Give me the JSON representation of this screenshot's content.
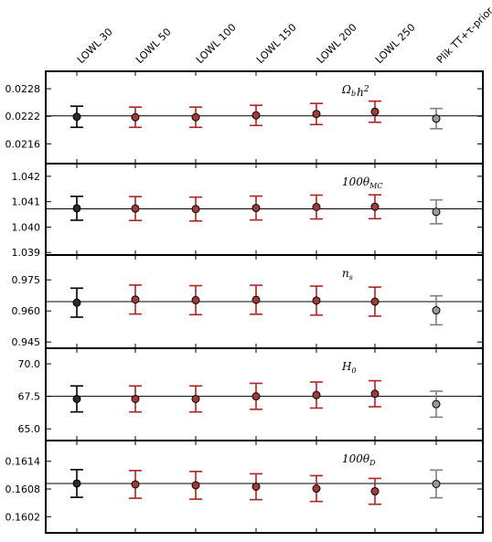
{
  "chart_data": {
    "type": "scatter",
    "subtype": "errorbar-panels",
    "categories": [
      "LOWL 30",
      "LOWL 50",
      "LOWL 100",
      "LOWL 150",
      "LOWL 200",
      "LOWL 250",
      "Plik TT+τ-prior"
    ],
    "category_colors": [
      "#000000",
      "#b22222",
      "#b22222",
      "#b22222",
      "#b22222",
      "#b22222",
      "#808080"
    ],
    "marker_colors": [
      "#2b2b2b",
      "#a33a3a",
      "#a33a3a",
      "#a33a3a",
      "#a33a3a",
      "#a33a3a",
      "#9a9a9a"
    ],
    "grid": false,
    "panels": [
      {
        "label": {
          "main": "Ω",
          "sub": "b",
          "rest": "h",
          "sup": "2"
        },
        "yticks": [
          "0.0228",
          "0.0222",
          "0.0216"
        ],
        "ytick_values": [
          0.0228,
          0.0222,
          0.0216
        ],
        "ylim": [
          0.02117,
          0.02318
        ],
        "reference": 0.02221,
        "values": [
          0.02219,
          0.02218,
          0.02218,
          0.02222,
          0.02225,
          0.0223,
          0.02215
        ],
        "errors": [
          0.00023,
          0.00022,
          0.00022,
          0.00022,
          0.00023,
          0.00023,
          0.00022
        ]
      },
      {
        "label": {
          "main": "100θ",
          "sub": "MC",
          "rest": "",
          "sup": ""
        },
        "yticks": [
          "1.042",
          "1.041",
          "1.040",
          "1.039"
        ],
        "ytick_values": [
          1.042,
          1.041,
          1.04,
          1.039
        ],
        "ylim": [
          1.0389,
          1.0425
        ],
        "reference": 1.04072,
        "values": [
          1.04074,
          1.04073,
          1.04071,
          1.04075,
          1.04079,
          1.0408,
          1.0406
        ],
        "errors": [
          0.00047,
          0.00047,
          0.00047,
          0.00047,
          0.00047,
          0.00047,
          0.00047
        ]
      },
      {
        "label": {
          "main": "n",
          "sub": "s",
          "rest": "",
          "sup": ""
        },
        "yticks": [
          "0.975",
          "0.960",
          "0.945"
        ],
        "ytick_values": [
          0.975,
          0.96,
          0.945
        ],
        "ylim": [
          0.942,
          0.987
        ],
        "reference": 0.9645,
        "values": [
          0.964,
          0.9655,
          0.9652,
          0.9654,
          0.965,
          0.9645,
          0.9603
        ],
        "errors": [
          0.007,
          0.007,
          0.007,
          0.007,
          0.007,
          0.007,
          0.007
        ]
      },
      {
        "label": {
          "main": "H",
          "sub": "0",
          "rest": "",
          "sup": ""
        },
        "yticks": [
          "70.0",
          "67.5",
          "65.0"
        ],
        "ytick_values": [
          70.0,
          67.5,
          65.0
        ],
        "ylim": [
          64.1,
          71.2
        ],
        "reference": 67.5,
        "values": [
          67.3,
          67.3,
          67.3,
          67.5,
          67.6,
          67.7,
          66.9
        ],
        "errors": [
          1.0,
          1.0,
          1.0,
          1.0,
          1.0,
          1.0,
          1.0
        ]
      },
      {
        "label": {
          "main": "100θ",
          "sub": "D",
          "rest": "",
          "sup": ""
        },
        "yticks": [
          "0.1614",
          "0.1608",
          "0.1602"
        ],
        "ytick_values": [
          0.1614,
          0.1608,
          0.1602
        ],
        "ylim": [
          0.15985,
          0.16185
        ],
        "reference": 0.16092,
        "values": [
          0.16092,
          0.1609,
          0.16088,
          0.16085,
          0.16081,
          0.16075,
          0.16091
        ],
        "errors": [
          0.0003,
          0.0003,
          0.0003,
          0.00028,
          0.00028,
          0.00028,
          0.0003
        ]
      }
    ]
  }
}
